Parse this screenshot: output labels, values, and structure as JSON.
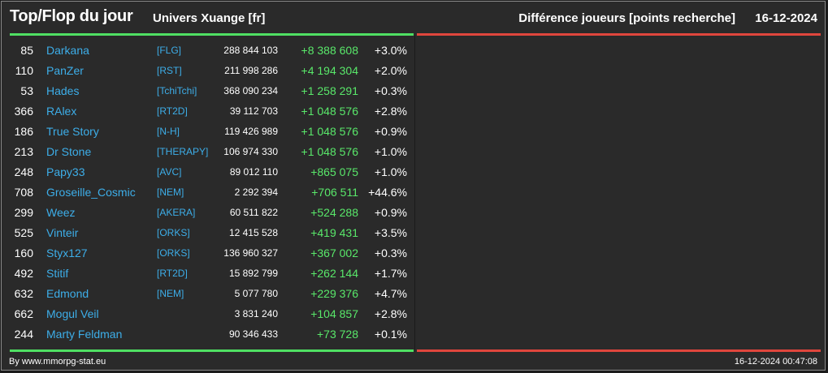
{
  "colors": {
    "link": "#3daee9",
    "positive": "#59e86a",
    "accent_left": "#4fe063",
    "accent_right": "#e0463d"
  },
  "header": {
    "title": "Top/Flop du jour",
    "univers": "Univers Xuange [fr]",
    "metric": "Différence joueurs [points recherche]",
    "date": "16-12-2024"
  },
  "table": {
    "rows": [
      {
        "rank": "85",
        "name": "Darkana",
        "tag": "[FLG]",
        "points": "288 844 103",
        "diff": "+8 388 608",
        "pct": "+3.0%"
      },
      {
        "rank": "110",
        "name": "PanZer",
        "tag": "[RST]",
        "points": "211 998 286",
        "diff": "+4 194 304",
        "pct": "+2.0%"
      },
      {
        "rank": "53",
        "name": "Hades",
        "tag": "[TchiTchi]",
        "points": "368 090 234",
        "diff": "+1 258 291",
        "pct": "+0.3%"
      },
      {
        "rank": "366",
        "name": "RAlex",
        "tag": "[RT2D]",
        "points": "39 112 703",
        "diff": "+1 048 576",
        "pct": "+2.8%"
      },
      {
        "rank": "186",
        "name": "True Story",
        "tag": "[N-H]",
        "points": "119 426 989",
        "diff": "+1 048 576",
        "pct": "+0.9%"
      },
      {
        "rank": "213",
        "name": "Dr Stone",
        "tag": "[THERAPY]",
        "points": "106 974 330",
        "diff": "+1 048 576",
        "pct": "+1.0%"
      },
      {
        "rank": "248",
        "name": "Papy33",
        "tag": "[AVC]",
        "points": "89 012 110",
        "diff": "+865 075",
        "pct": "+1.0%"
      },
      {
        "rank": "708",
        "name": "Groseille_Cosmic",
        "tag": "[NEM]",
        "points": "2 292 394",
        "diff": "+706 511",
        "pct": "+44.6%"
      },
      {
        "rank": "299",
        "name": "Weez",
        "tag": "[AKERA]",
        "points": "60 511 822",
        "diff": "+524 288",
        "pct": "+0.9%"
      },
      {
        "rank": "525",
        "name": "Vinteir",
        "tag": "[ORKS]",
        "points": "12 415 528",
        "diff": "+419 431",
        "pct": "+3.5%"
      },
      {
        "rank": "160",
        "name": "Styx127",
        "tag": "[ORKS]",
        "points": "136 960 327",
        "diff": "+367 002",
        "pct": "+0.3%"
      },
      {
        "rank": "492",
        "name": "Stitif",
        "tag": "[RT2D]",
        "points": "15 892 799",
        "diff": "+262 144",
        "pct": "+1.7%"
      },
      {
        "rank": "632",
        "name": "Edmond",
        "tag": "[NEM]",
        "points": "5 077 780",
        "diff": "+229 376",
        "pct": "+4.7%"
      },
      {
        "rank": "662",
        "name": "Mogul Veil",
        "tag": "",
        "points": "3 831 240",
        "diff": "+104 857",
        "pct": "+2.8%"
      },
      {
        "rank": "244",
        "name": "Marty Feldman",
        "tag": "",
        "points": "90 346 433",
        "diff": "+73 728",
        "pct": "+0.1%"
      }
    ]
  },
  "footer": {
    "source": "By www.mmorpg-stat.eu",
    "timestamp": "16-12-2024 00:47:08"
  }
}
